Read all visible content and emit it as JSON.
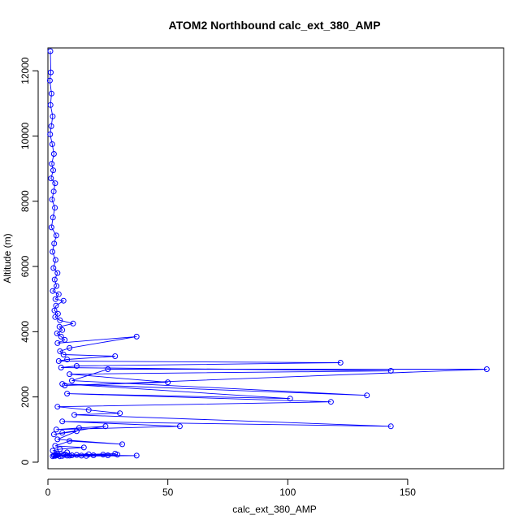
{
  "chart_data": {
    "type": "line",
    "title": "ATOM2 Northbound calc_ext_380_AMP",
    "xlabel": "calc_ext_380_AMP",
    "ylabel": "Altitude (m)",
    "xlim": [
      0,
      190
    ],
    "ylim": [
      -200,
      12700
    ],
    "xticks": [
      0,
      50,
      100,
      150
    ],
    "yticks": [
      0,
      2000,
      4000,
      6000,
      8000,
      10000,
      12000
    ],
    "grid": false,
    "legend": "none",
    "colors": {
      "series": "#0000ff",
      "axes": "#000000"
    },
    "series": [
      {
        "style": "line+points",
        "x": [
          1.0,
          1.2,
          0.8,
          1.5,
          1.1,
          2.0,
          1.4,
          0.9,
          1.8,
          2.5,
          1.6,
          2.2,
          1.3,
          3.0,
          2.4,
          1.7,
          2.9,
          2.1,
          1.5,
          3.5,
          2.6,
          1.9,
          3.2,
          2.3,
          4.0,
          2.8,
          3.6,
          2.0,
          4.5,
          3.1,
          6.5,
          3.4,
          2.7,
          4.2,
          3.0,
          5.0,
          10.5,
          4.8,
          6.0,
          3.8,
          5.5,
          7.0,
          4.0,
          37.0,
          9.0,
          5.0,
          6.5,
          28.0,
          8.0,
          4.5,
          122.0,
          12.0,
          5.5,
          143.0,
          9.0,
          50.0,
          7.0,
          183.0,
          25.0,
          10.0,
          133.0,
          6.0,
          101.0,
          8.0,
          118.0,
          4.0,
          17.0,
          30.0,
          11.0,
          143.0,
          6.0,
          55.0,
          3.5,
          13.0,
          24.0,
          6.0,
          2.5,
          12.0,
          4.0,
          31.0,
          9.0,
          3.0,
          15.0,
          5.0,
          2.0,
          8.0,
          4.0,
          3.0,
          23.0,
          10.0,
          2.5,
          17.0,
          6.0,
          28.0,
          3.5,
          14.0,
          7.0,
          37.0,
          5.0,
          19.0,
          12.0,
          3.0,
          25.0,
          9.0,
          2.0,
          29.0,
          8.0,
          16.0,
          4.0
        ],
        "y": [
          12600,
          11950,
          11700,
          11300,
          10950,
          10600,
          10300,
          10050,
          9750,
          9450,
          9150,
          8950,
          8700,
          8550,
          8300,
          8050,
          7800,
          7500,
          7200,
          6950,
          6700,
          6450,
          6200,
          5950,
          5800,
          5600,
          5400,
          5250,
          5150,
          5000,
          4950,
          4800,
          4650,
          4550,
          4450,
          4350,
          4250,
          4150,
          4050,
          3950,
          3850,
          3750,
          3650,
          3850,
          3500,
          3400,
          3300,
          3250,
          3150,
          3100,
          3050,
          2950,
          2900,
          2800,
          2700,
          2450,
          2350,
          2850,
          2850,
          2500,
          2050,
          2400,
          1950,
          2100,
          1850,
          1700,
          1600,
          1500,
          1450,
          1100,
          1250,
          1100,
          1000,
          1050,
          1100,
          900,
          850,
          950,
          700,
          550,
          650,
          500,
          450,
          400,
          350,
          300,
          250,
          220,
          230,
          210,
          200,
          240,
          190,
          260,
          210,
          200,
          230,
          200,
          180,
          210,
          220,
          190,
          210,
          200,
          180,
          230,
          200,
          190,
          210
        ]
      }
    ]
  }
}
